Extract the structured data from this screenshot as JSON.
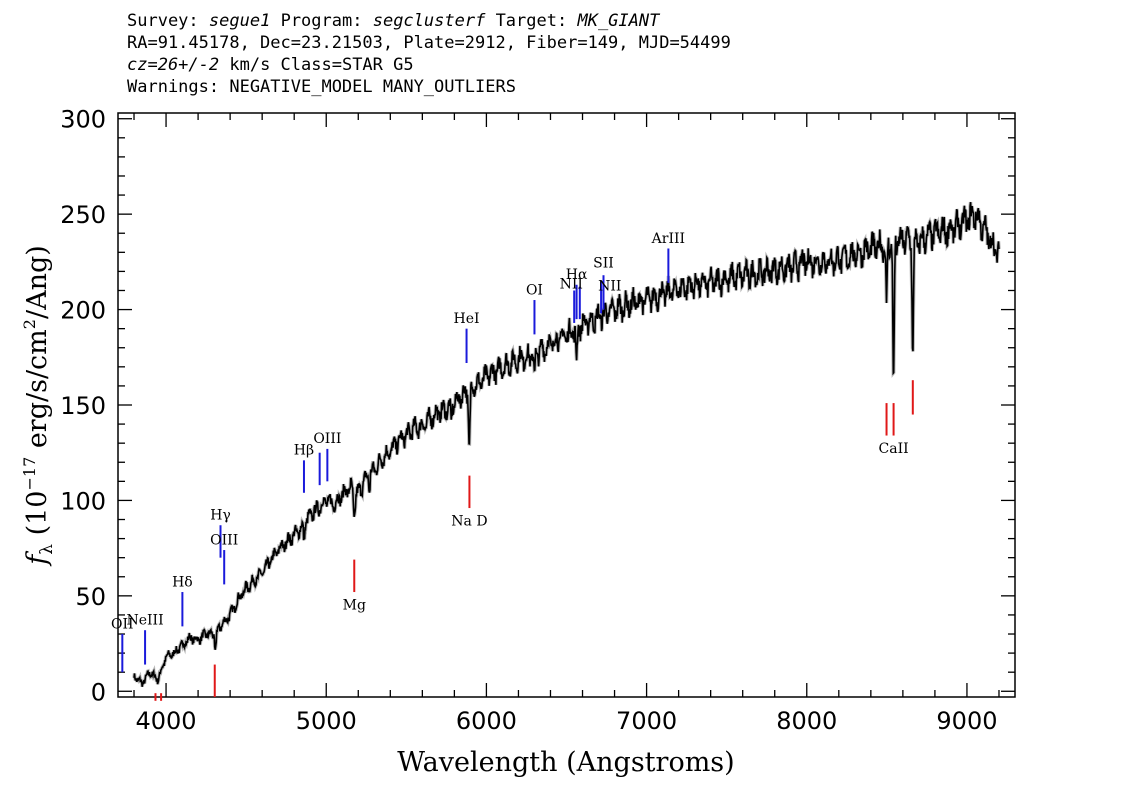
{
  "header": {
    "survey_label": "Survey:",
    "survey": "segue1",
    "program_label": "Program:",
    "program": "segclusterf",
    "target_label": "Target:",
    "target": "MK_GIANT",
    "line2": "RA=91.45178, Dec=23.21503, Plate=2912, Fiber=149, MJD=54499",
    "cz": "cz=26+/-2",
    "cz_units": "km/s Class=STAR G5",
    "warnings": "Warnings: NEGATIVE_MODEL MANY_OUTLIERS"
  },
  "chart_data": {
    "type": "line",
    "xlabel": "Wavelength (Angstroms)",
    "ylabel": "f_λ (10^-17 erg/s/cm^2/Ang)",
    "xlim": [
      3700,
      9300
    ],
    "ylim": [
      -3,
      303
    ],
    "xticks": [
      4000,
      5000,
      6000,
      7000,
      8000,
      9000
    ],
    "yticks": [
      0,
      50,
      100,
      150,
      200,
      250,
      300
    ],
    "series": [
      {
        "color": "#000000",
        "x": [
          3800,
          3850,
          3900,
          3950,
          4000,
          4050,
          4100,
          4150,
          4200,
          4250,
          4300,
          4350,
          4400,
          4450,
          4500,
          4550,
          4600,
          4650,
          4700,
          4750,
          4800,
          4850,
          4900,
          4950,
          5000,
          5050,
          5100,
          5150,
          5200,
          5250,
          5300,
          5350,
          5400,
          5450,
          5500,
          5550,
          5600,
          5650,
          5700,
          5750,
          5800,
          5850,
          5900,
          5950,
          6000,
          6100,
          6200,
          6300,
          6400,
          6500,
          6600,
          6700,
          6800,
          6900,
          7000,
          7100,
          7200,
          7300,
          7400,
          7500,
          7600,
          7700,
          7800,
          7900,
          8000,
          8100,
          8200,
          8300,
          8400,
          8450,
          8500,
          8550,
          8600,
          8650,
          8700,
          8750,
          8800,
          8850,
          8900,
          8950,
          9000,
          9050,
          9100,
          9150,
          9200
        ],
        "y": [
          8,
          4,
          10,
          6,
          18,
          20,
          24,
          28,
          27,
          30,
          30,
          35,
          40,
          48,
          54,
          58,
          62,
          68,
          74,
          78,
          82,
          86,
          92,
          96,
          100,
          98,
          103,
          107,
          104,
          112,
          116,
          122,
          126,
          131,
          134,
          138,
          139,
          143,
          146,
          148,
          151,
          155,
          160,
          161,
          165,
          170,
          174,
          176,
          182,
          187,
          192,
          196,
          200,
          203,
          205,
          208,
          211,
          213,
          214,
          216,
          218,
          219,
          221,
          222,
          225,
          225,
          226,
          229,
          232,
          233,
          234,
          235,
          236,
          237,
          235,
          238,
          240,
          241,
          242,
          244,
          247,
          250,
          243,
          236,
          228
        ]
      }
    ],
    "absorption_features": [
      {
        "x": 4308,
        "depth": 10,
        "width": 6
      },
      {
        "x": 4861,
        "depth": 8,
        "width": 5
      },
      {
        "x": 5175,
        "depth": 14,
        "width": 8
      },
      {
        "x": 5270,
        "depth": 7,
        "width": 5
      },
      {
        "x": 5893,
        "depth": 32,
        "width": 7
      },
      {
        "x": 5780,
        "depth": 10,
        "width": 5
      },
      {
        "x": 6300,
        "depth": 10,
        "width": 5
      },
      {
        "x": 6563,
        "depth": 18,
        "width": 6
      },
      {
        "x": 8498,
        "depth": 38,
        "width": 5
      },
      {
        "x": 8542,
        "depth": 78,
        "width": 6
      },
      {
        "x": 8662,
        "depth": 62,
        "width": 6
      }
    ],
    "emission_lines": [
      {
        "label": "OII",
        "x": 3727,
        "y0": 10,
        "y1": 30,
        "label_y": 33
      },
      {
        "label": "NeIII",
        "x": 3869,
        "y0": 14,
        "y1": 32,
        "label_y": 35
      },
      {
        "label": "Hδ",
        "x": 4102,
        "y0": 34,
        "y1": 52,
        "label_y": 55
      },
      {
        "label": "Hγ",
        "x": 4340,
        "y0": 70,
        "y1": 87,
        "label_y": 90
      },
      {
        "label": "OIII",
        "x": 4363,
        "y0": 56,
        "y1": 74,
        "label_y": 77
      },
      {
        "label": "Hβ",
        "x": 4861,
        "y0": 104,
        "y1": 121,
        "label_y": 124
      },
      {
        "label": "OIII",
        "x": 4959,
        "y0": 108,
        "y1": 125,
        "label_y": 0
      },
      {
        "label": "OIII",
        "x": 5007,
        "y0": 110,
        "y1": 127,
        "label_y": 130
      },
      {
        "label": "HeI",
        "x": 5876,
        "y0": 172,
        "y1": 190,
        "label_y": 193
      },
      {
        "label": "OI",
        "x": 6300,
        "y0": 187,
        "y1": 205,
        "label_y": 208
      },
      {
        "label": "NII",
        "x": 6548,
        "y0": 193,
        "y1": 210,
        "label_y": 0
      },
      {
        "label": "Hα",
        "x": 6563,
        "y0": 195,
        "y1": 213,
        "label_y": 216
      },
      {
        "label": "NII",
        "x": 6583,
        "y0": 195,
        "y1": 212,
        "label_y": 0
      },
      {
        "label": "SII",
        "x": 6716,
        "y0": 198,
        "y1": 215,
        "label_y": 0
      },
      {
        "label": "SII",
        "x": 6731,
        "y0": 200,
        "y1": 218,
        "label_y": 222
      },
      {
        "label": "ArIII",
        "x": 7136,
        "y0": 214,
        "y1": 232,
        "label_y": 235
      }
    ],
    "extra_line_labels": [
      {
        "label": "NII",
        "x": 6530,
        "y": 211
      },
      {
        "label": "NII",
        "x": 6770,
        "y": 210
      }
    ],
    "absorption_lines": [
      {
        "label": "",
        "x": 3934,
        "y0": -5,
        "y1": -1
      },
      {
        "label": "",
        "x": 3969,
        "y0": -5,
        "y1": -1
      },
      {
        "label": "",
        "x": 4304,
        "y0": -3,
        "y1": 14
      },
      {
        "label": "Mg",
        "x": 5175,
        "y0": 52,
        "y1": 69,
        "label_y": 48
      },
      {
        "label": "Na D",
        "x": 5894,
        "y0": 96,
        "y1": 113,
        "label_y": 92
      },
      {
        "label": "",
        "x": 8498,
        "y0": 134,
        "y1": 151
      },
      {
        "label": "CaII",
        "x": 8542,
        "y0": 134,
        "y1": 151,
        "label_y": 130
      },
      {
        "label": "",
        "x": 8662,
        "y0": 145,
        "y1": 163
      }
    ]
  }
}
